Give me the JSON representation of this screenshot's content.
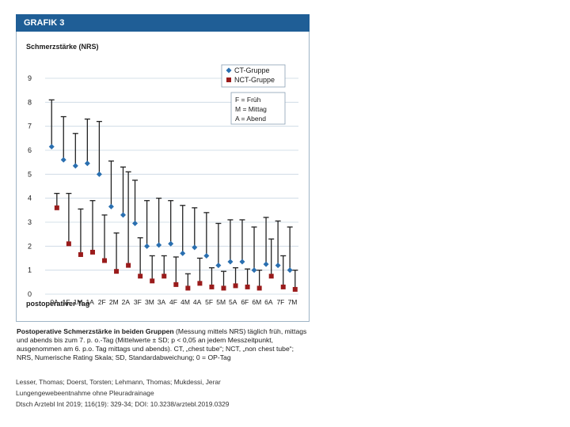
{
  "figure": {
    "header": "GRAFIK 3",
    "caption_title": "Postoperative Schmerzstärke in beiden Gruppen",
    "caption_rest": " (Messung mittels NRS) täglich früh, mittags und abends bis zum 7. p. o.-Tag (Mittelwerte ± SD; p < 0,05 an jedem Messzeitpunkt, ausgenommen am 6. p.o. Tag mittags und abends). CT, „chest tube“; NCT, „non chest tube“; NRS, Numerische Rating Skala; SD, Standardabweichung; 0 = OP-Tag"
  },
  "citation": {
    "line1": "Lesser, Thomas; Doerst, Torsten; Lehmann, Thomas; Mukdessi, Jerar",
    "line2": "Lungengewebeentnahme ohne Pleuradrainage",
    "line3": "Dtsch Arztebl Int 2019; 116(19): 329-34; DOI: 10.3238/arztebl.2019.0329"
  },
  "colors": {
    "ct": "#2a6fb0",
    "nct": "#9a1b1b",
    "whisker": "#222222",
    "header": "#1f5e96"
  },
  "chart_data": {
    "type": "scatter",
    "ylabel": "Schmerzstärke (NRS)",
    "xlabel": "postoperativer Tag",
    "ylim": [
      0,
      9
    ],
    "yticks": [
      0,
      1,
      2,
      3,
      4,
      5,
      6,
      7,
      8,
      9
    ],
    "categories": [
      "0A",
      "1F",
      "1M",
      "1A",
      "2F",
      "2M",
      "2A",
      "3F",
      "3M",
      "3A",
      "4F",
      "4M",
      "4A",
      "5F",
      "5M",
      "5A",
      "6F",
      "6M",
      "6A",
      "7F",
      "7M"
    ],
    "legend": {
      "placement": "top-right",
      "items": [
        "CT-Gruppe",
        "NCT-Gruppe"
      ],
      "abbreviations": [
        "F = Früh",
        "M = Mittag",
        "A = Abend"
      ]
    },
    "series": [
      {
        "name": "CT-Gruppe",
        "marker": "diamond",
        "values": [
          6.15,
          5.6,
          5.35,
          5.45,
          5.0,
          3.65,
          3.3,
          2.95,
          2.0,
          2.05,
          2.1,
          1.7,
          1.95,
          1.6,
          1.2,
          1.35,
          1.35,
          1.0,
          1.25,
          1.2,
          1.0
        ],
        "upper": [
          8.1,
          7.4,
          6.7,
          7.3,
          7.2,
          5.55,
          5.3,
          4.75,
          3.9,
          4.0,
          3.9,
          3.7,
          3.6,
          3.4,
          2.95,
          3.1,
          3.1,
          2.8,
          3.2,
          3.05,
          2.8
        ]
      },
      {
        "name": "NCT-Gruppe",
        "marker": "square",
        "values": [
          3.6,
          2.1,
          1.65,
          1.75,
          1.4,
          0.95,
          1.2,
          0.75,
          0.55,
          0.75,
          0.4,
          0.25,
          0.45,
          0.3,
          0.25,
          0.35,
          0.3,
          0.25,
          0.75,
          0.3,
          0.2
        ],
        "upper": [
          4.2,
          4.2,
          3.55,
          3.9,
          3.3,
          2.55,
          5.1,
          2.35,
          1.6,
          1.6,
          1.55,
          0.85,
          1.5,
          1.1,
          0.95,
          1.1,
          1.05,
          1.0,
          2.3,
          1.6,
          1.0
        ]
      }
    ]
  }
}
